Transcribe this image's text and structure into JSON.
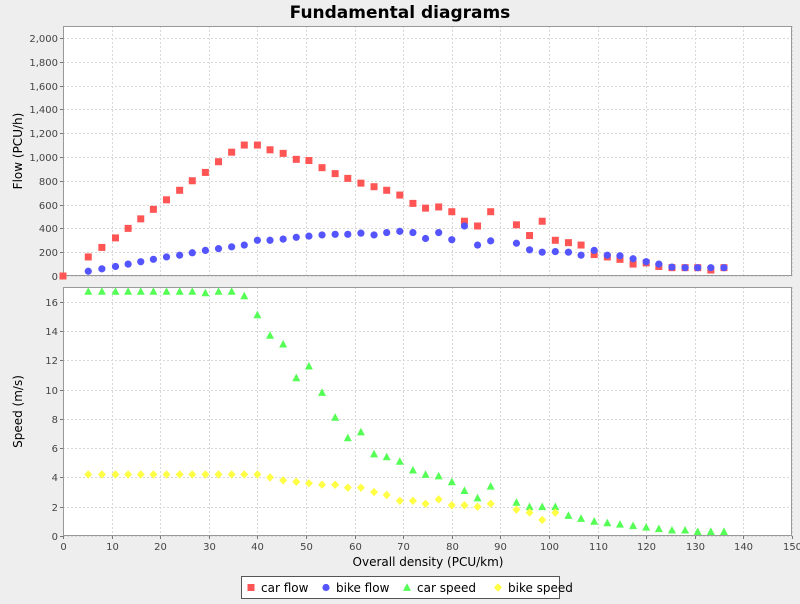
{
  "chart_data": {
    "type": "scatter",
    "title": "Fundamental diagrams",
    "xlabel": "Overall density (PCU/km)",
    "xlim": [
      0,
      150
    ],
    "x_ticks": [
      "0",
      "10",
      "20",
      "30",
      "40",
      "50",
      "60",
      "70",
      "80",
      "90",
      "100",
      "110",
      "120",
      "130",
      "140",
      "150"
    ],
    "grid": true,
    "legend_position": "bottom",
    "panels": [
      {
        "id": "flow",
        "ylabel": "Flow (PCU/h)",
        "ylim": [
          0,
          2100
        ],
        "y_ticks": [
          "0",
          "200",
          "400",
          "600",
          "800",
          "1,000",
          "1,200",
          "1,400",
          "1,600",
          "1,800",
          "2,000"
        ],
        "y_tick_values": [
          0,
          200,
          400,
          600,
          800,
          1000,
          1200,
          1400,
          1600,
          1800,
          2000
        ],
        "series": [
          {
            "name": "car flow",
            "marker": "square",
            "color": "#ff5555",
            "x": [
              0,
              5.2,
              8,
              10.8,
              13.4,
              16,
              18.6,
              21.3,
              24,
              26.6,
              29.3,
              32,
              34.7,
              37.3,
              40,
              42.6,
              45.3,
              48,
              50.6,
              53.3,
              56,
              58.6,
              61.3,
              64,
              66.6,
              69.3,
              72,
              74.6,
              77.3,
              80,
              82.6,
              85.3,
              88,
              93.3,
              96,
              98.6,
              101.3,
              104,
              106.6,
              109.3,
              112,
              114.6,
              117.3,
              120,
              122.6,
              125.3,
              128,
              130.6,
              133.3,
              136
            ],
            "y": [
              0,
              160,
              240,
              320,
              400,
              480,
              560,
              640,
              720,
              800,
              870,
              960,
              1040,
              1100,
              1100,
              1060,
              1030,
              980,
              970,
              910,
              860,
              820,
              780,
              750,
              720,
              680,
              610,
              570,
              580,
              540,
              460,
              420,
              540,
              430,
              340,
              460,
              300,
              280,
              260,
              180,
              160,
              140,
              100,
              110,
              80,
              70,
              70,
              70,
              50,
              70
            ]
          },
          {
            "name": "bike flow",
            "marker": "circle",
            "color": "#5555ff",
            "x": [
              5.2,
              8,
              10.8,
              13.4,
              16,
              18.6,
              21.3,
              24,
              26.6,
              29.3,
              32,
              34.7,
              37.3,
              40,
              42.6,
              45.3,
              48,
              50.6,
              53.3,
              56,
              58.6,
              61.3,
              64,
              66.6,
              69.3,
              72,
              74.6,
              77.3,
              80,
              82.6,
              85.3,
              88,
              93.3,
              96,
              98.6,
              101.3,
              104,
              106.6,
              109.3,
              112,
              114.6,
              117.3,
              120,
              122.6,
              125.3,
              128,
              130.6,
              133.3,
              136
            ],
            "y": [
              40,
              60,
              80,
              100,
              120,
              140,
              160,
              175,
              195,
              215,
              230,
              245,
              260,
              300,
              300,
              310,
              325,
              335,
              345,
              350,
              350,
              360,
              345,
              365,
              375,
              365,
              315,
              365,
              305,
              420,
              260,
              295,
              275,
              220,
              200,
              205,
              200,
              175,
              215,
              175,
              170,
              145,
              120,
              100,
              75,
              70,
              70,
              70,
              70
            ]
          }
        ]
      },
      {
        "id": "speed",
        "ylabel": "Speed (m/s)",
        "ylim": [
          0,
          17
        ],
        "y_ticks": [
          "0",
          "2",
          "4",
          "6",
          "8",
          "10",
          "12",
          "14",
          "16"
        ],
        "y_tick_values": [
          0,
          2,
          4,
          6,
          8,
          10,
          12,
          14,
          16
        ],
        "series": [
          {
            "name": "car speed",
            "marker": "triangle",
            "color": "#55ff55",
            "x": [
              5.2,
              8,
              10.8,
              13.4,
              16,
              18.6,
              21.3,
              24,
              26.6,
              29.3,
              32,
              34.7,
              37.3,
              40,
              42.6,
              45.3,
              48,
              50.6,
              53.3,
              56,
              58.6,
              61.3,
              64,
              66.6,
              69.3,
              72,
              74.6,
              77.3,
              80,
              82.6,
              85.3,
              88,
              93.3,
              96,
              98.6,
              101.3,
              104,
              106.6,
              109.3,
              112,
              114.6,
              117.3,
              120,
              122.6,
              125.3,
              128,
              130.6,
              133.3,
              136
            ],
            "y": [
              16.7,
              16.7,
              16.7,
              16.7,
              16.7,
              16.7,
              16.7,
              16.7,
              16.7,
              16.6,
              16.7,
              16.7,
              16.4,
              15.1,
              13.7,
              13.1,
              10.8,
              11.6,
              9.8,
              8.1,
              6.7,
              7.1,
              5.6,
              5.4,
              5.1,
              4.5,
              4.2,
              4.1,
              3.7,
              3.1,
              2.6,
              3.4,
              2.3,
              2.0,
              2.0,
              2.0,
              1.4,
              1.2,
              1.0,
              0.9,
              0.8,
              0.7,
              0.6,
              0.5,
              0.4,
              0.4,
              0.3,
              0.3,
              0.3
            ]
          },
          {
            "name": "bike speed",
            "marker": "diamond",
            "color": "#ffff44",
            "x": [
              5.2,
              8,
              10.8,
              13.4,
              16,
              18.6,
              21.3,
              24,
              26.6,
              29.3,
              32,
              34.7,
              37.3,
              40,
              42.6,
              45.3,
              48,
              50.6,
              53.3,
              56,
              58.6,
              61.3,
              64,
              66.6,
              69.3,
              72,
              74.6,
              77.3,
              80,
              82.6,
              85.3,
              88,
              93.3,
              96,
              98.6,
              101.3
            ],
            "y": [
              4.2,
              4.2,
              4.2,
              4.2,
              4.2,
              4.2,
              4.2,
              4.2,
              4.2,
              4.2,
              4.2,
              4.2,
              4.2,
              4.2,
              4.0,
              3.8,
              3.7,
              3.6,
              3.5,
              3.5,
              3.3,
              3.3,
              3.0,
              2.8,
              2.4,
              2.4,
              2.2,
              2.5,
              2.1,
              2.1,
              2.0,
              2.2,
              1.8,
              1.6,
              1.1,
              1.6
            ]
          }
        ]
      }
    ]
  }
}
